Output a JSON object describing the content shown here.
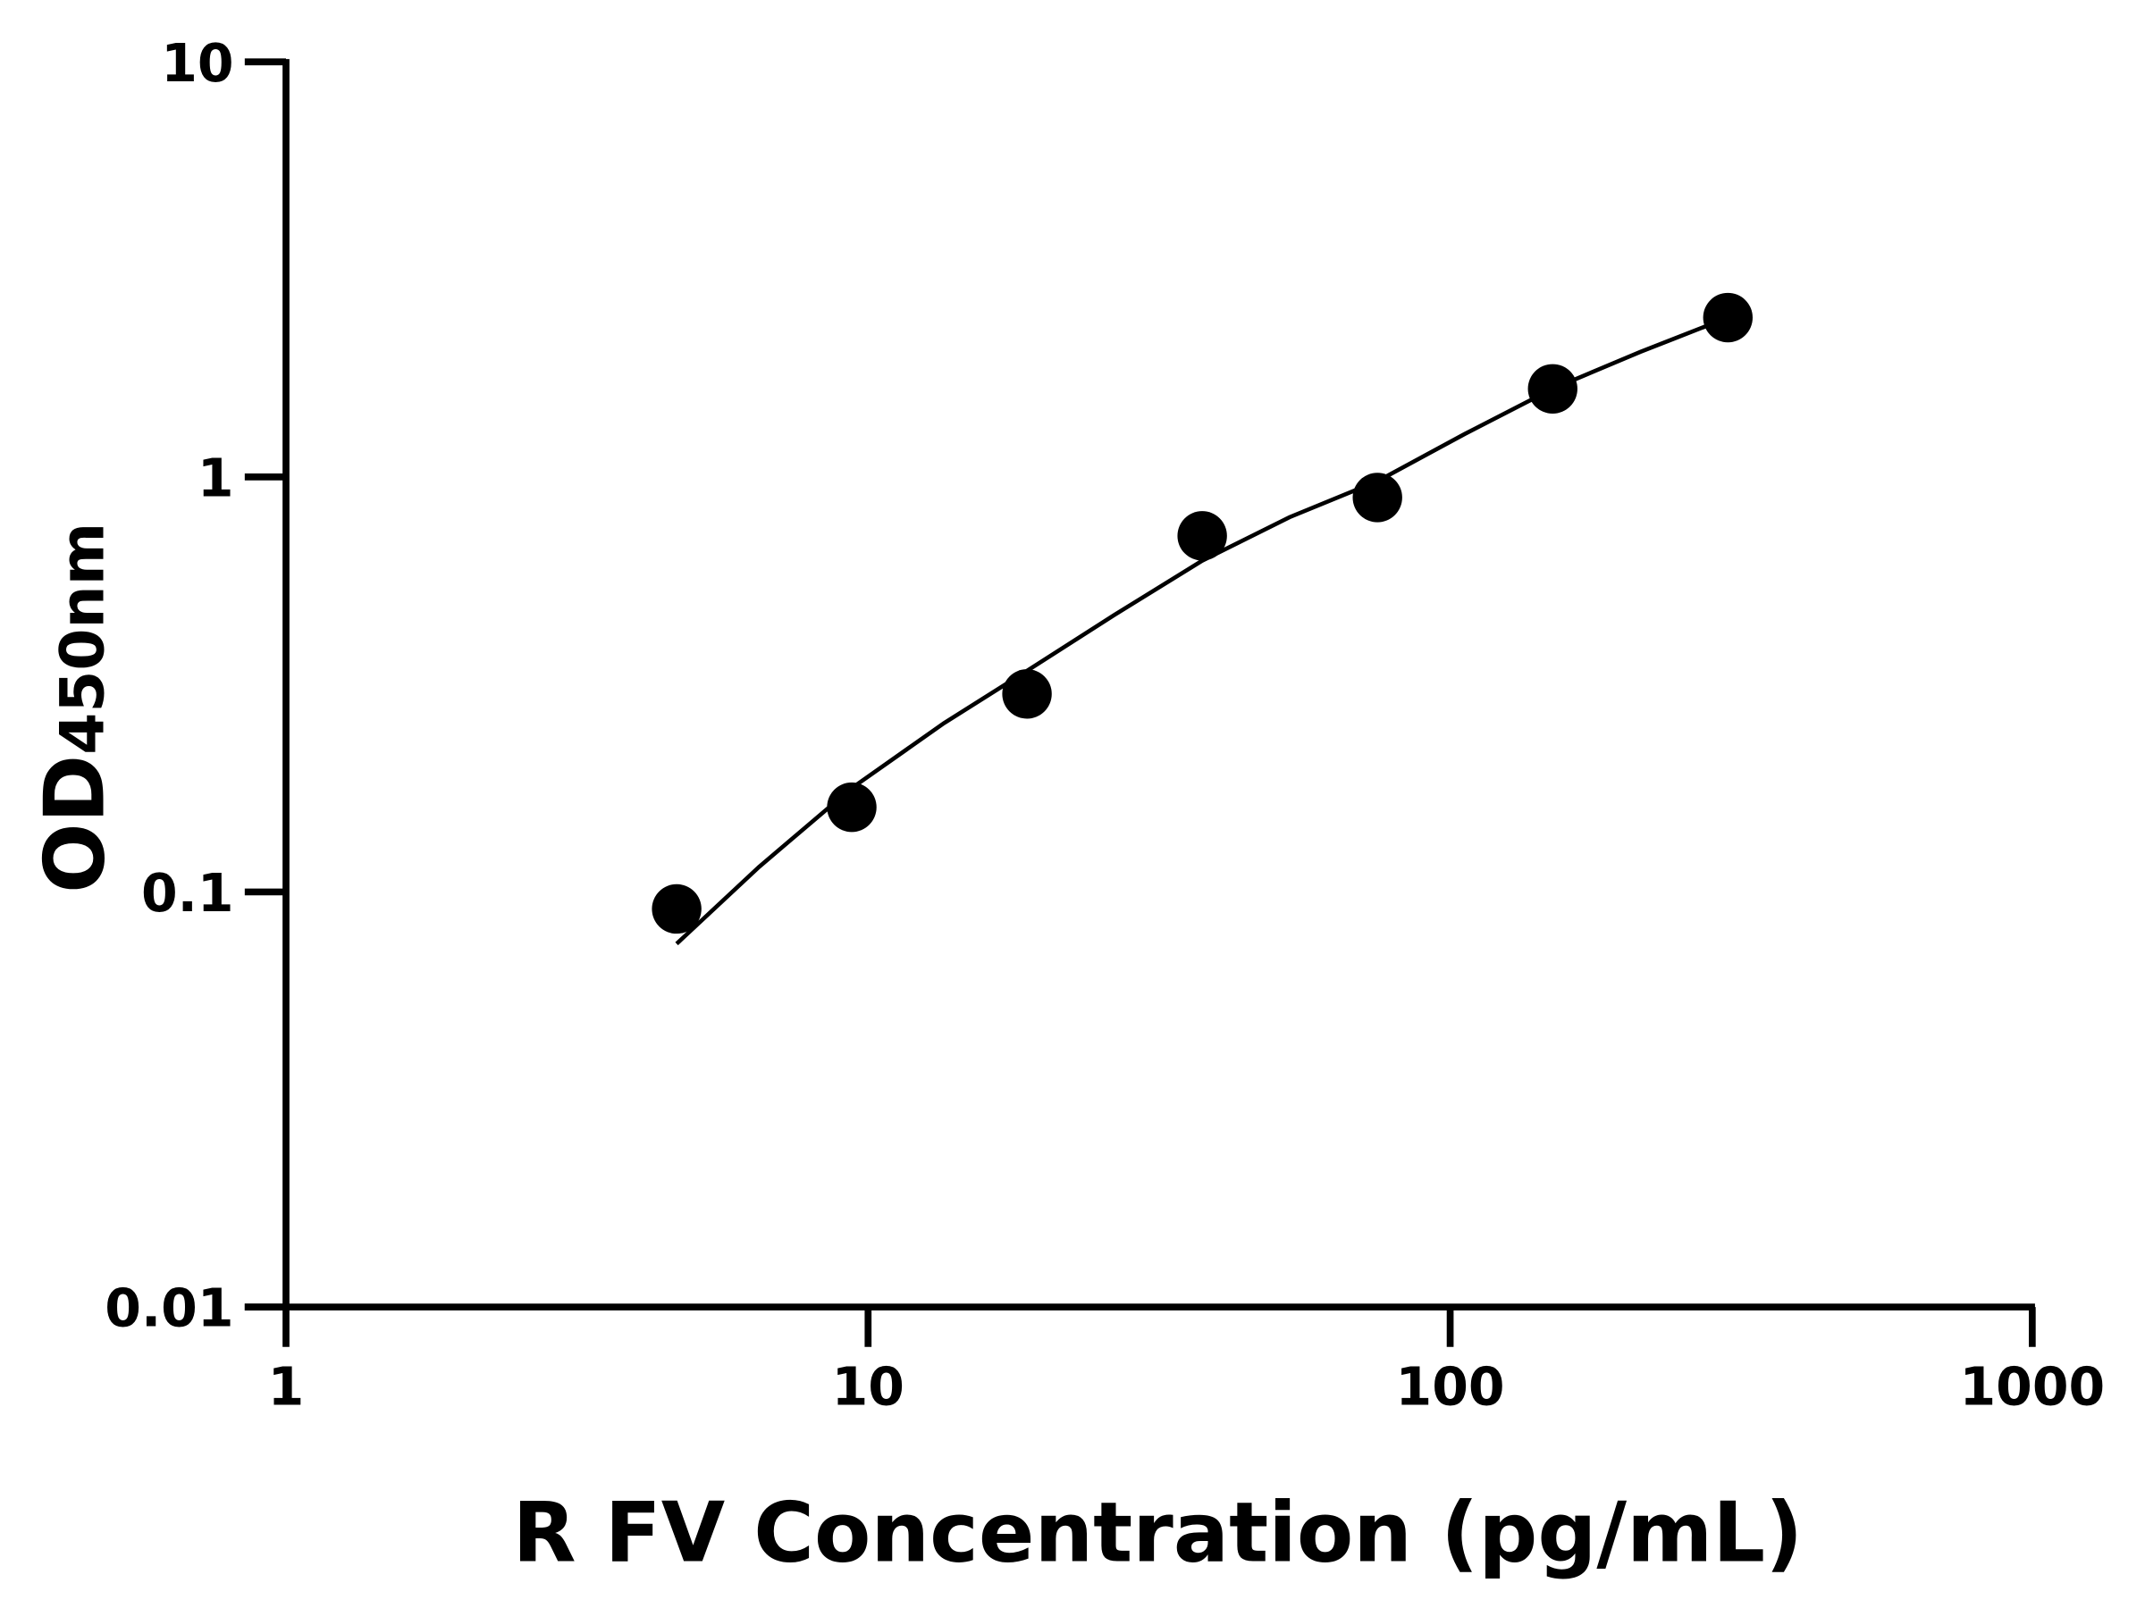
{
  "chart_data": {
    "type": "scatter",
    "title": "",
    "xlabel": "R FV Concentration (pg/mL)",
    "ylabel_main": "OD",
    "ylabel_sub": "450nm",
    "x_scale": "log",
    "y_scale": "log",
    "xlim": [
      1,
      1000
    ],
    "ylim": [
      0.01,
      10
    ],
    "x_ticks": [
      "1",
      "10",
      "100",
      "1000"
    ],
    "y_ticks": [
      "0.01",
      "0.1",
      "1",
      "10"
    ],
    "grid": false,
    "legend": "none",
    "color": "#000000",
    "points": [
      {
        "x": 4.69,
        "y": 0.091
      },
      {
        "x": 9.375,
        "y": 0.16
      },
      {
        "x": 18.75,
        "y": 0.3
      },
      {
        "x": 37.5,
        "y": 0.721
      },
      {
        "x": 75,
        "y": 0.892
      },
      {
        "x": 150,
        "y": 1.63
      },
      {
        "x": 300,
        "y": 2.42
      }
    ],
    "fit_curve": [
      {
        "x": 4.69,
        "y": 0.075
      },
      {
        "x": 6.5,
        "y": 0.115
      },
      {
        "x": 9.375,
        "y": 0.178
      },
      {
        "x": 13.5,
        "y": 0.255
      },
      {
        "x": 18.75,
        "y": 0.341
      },
      {
        "x": 26.5,
        "y": 0.465
      },
      {
        "x": 37.5,
        "y": 0.628
      },
      {
        "x": 53,
        "y": 0.8
      },
      {
        "x": 75,
        "y": 0.977
      },
      {
        "x": 106,
        "y": 1.27
      },
      {
        "x": 150,
        "y": 1.63
      },
      {
        "x": 212,
        "y": 2.0
      },
      {
        "x": 300,
        "y": 2.42
      }
    ]
  }
}
